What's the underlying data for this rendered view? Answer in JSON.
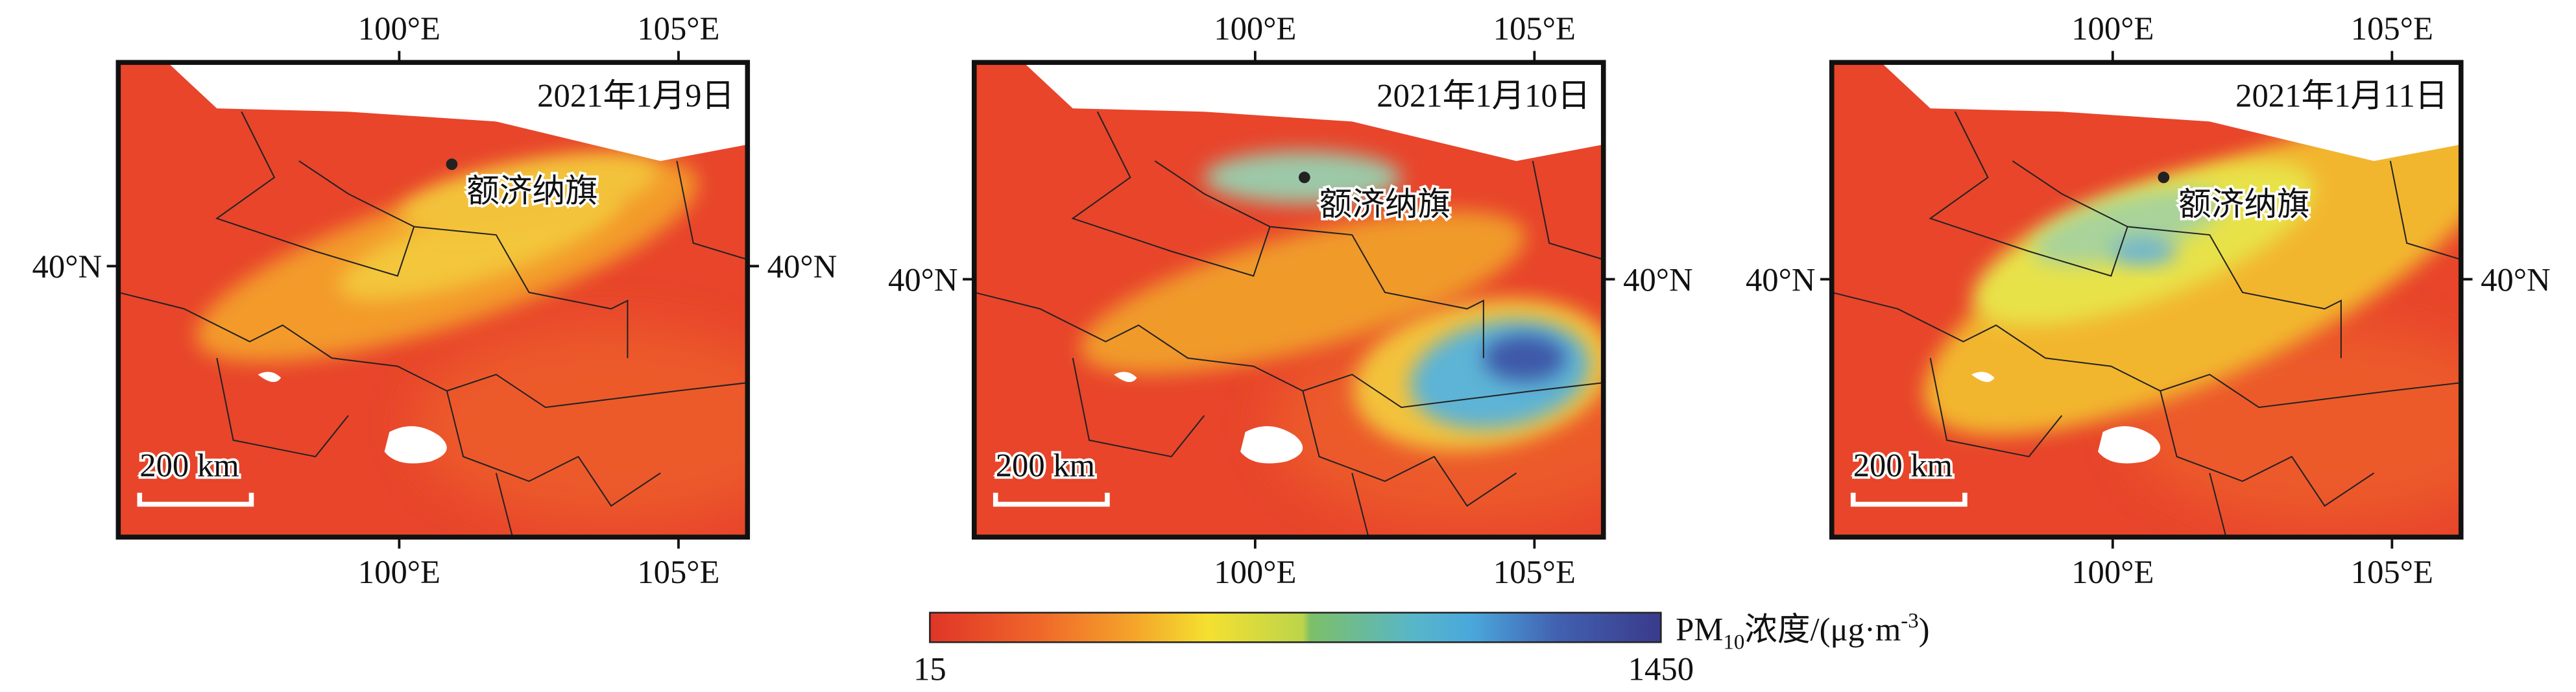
{
  "lon_ticks": [
    "100°E",
    "105°E"
  ],
  "lat_tick": "40°N",
  "panels": [
    {
      "date": "2021年1月9日",
      "place": "额济纳旗",
      "scale_bar": "200 km"
    },
    {
      "date": "2021年1月10日",
      "place": "额济纳旗",
      "scale_bar": "200 km"
    },
    {
      "date": "2021年1月11日",
      "place": "额济纳旗",
      "scale_bar": "200 km"
    }
  ],
  "colorbar": {
    "label_parts": [
      "PM",
      "10",
      "浓度/(μg·m",
      "-3",
      ")"
    ],
    "min": 15,
    "max": 1450
  }
}
